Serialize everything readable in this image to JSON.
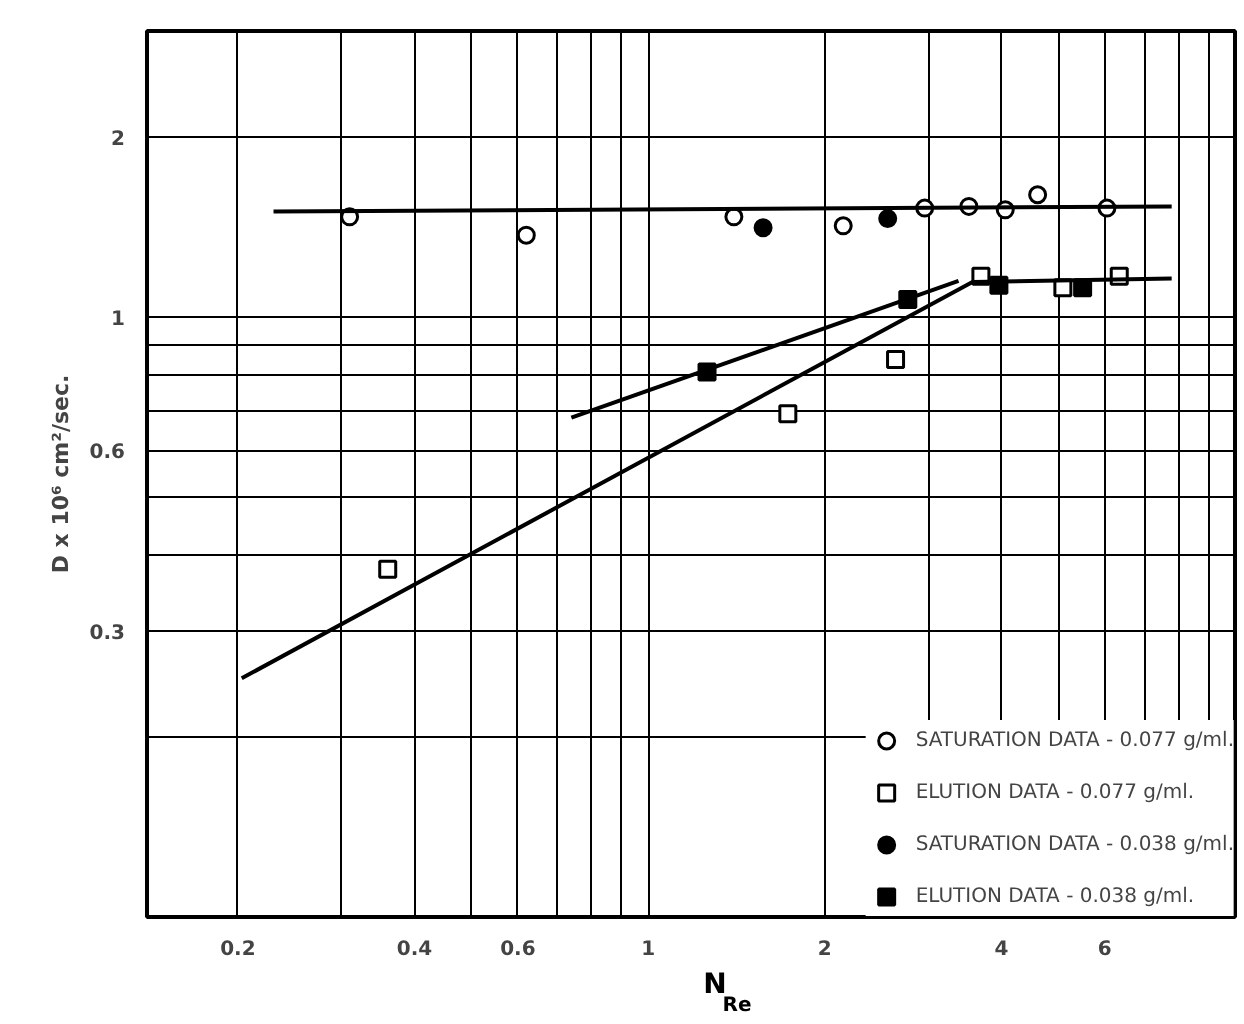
{
  "chart_data": {
    "type": "scatter",
    "xlabel": "N$_{Re}$",
    "ylabel": "D x 10⁶ cm²/sec.",
    "log": "xy",
    "xlim": [
      0.14,
      10
    ],
    "ylim": [
      0.1,
      3
    ],
    "xticks": [
      0.2,
      {
        "value": 0.3,
        "label": null
      },
      0.4,
      {
        "value": 0.5,
        "label": null
      },
      0.6,
      {
        "value": 0.7,
        "label": null
      },
      {
        "value": 0.8,
        "label": null
      },
      {
        "value": 0.9,
        "label": null
      },
      1,
      2,
      {
        "value": 3,
        "label": null
      },
      4,
      {
        "value": 5,
        "label": null
      },
      6,
      {
        "value": 7,
        "label": null
      },
      {
        "value": 8,
        "label": null
      },
      {
        "value": 9,
        "label": null
      }
    ],
    "yticks": [
      {
        "value": 0.2,
        "label": null
      },
      0.3,
      {
        "value": 0.4,
        "label": null
      },
      {
        "value": 0.5,
        "label": null
      },
      0.6,
      {
        "value": 0.7,
        "label": null
      },
      {
        "value": 0.8,
        "label": null
      },
      {
        "value": 0.9,
        "label": null
      },
      1,
      2
    ],
    "grid": true,
    "legend": "bottom right",
    "series": [
      {
        "name": "SATURATION DATA - 0.077 g/ml.",
        "marker": "circle",
        "color": "#ffffff",
        "x": [
          0.31,
          0.62,
          1.4,
          2.15,
          2.96,
          3.52,
          4.06,
          4.61,
          6.05
        ],
        "values": [
          1.47,
          1.37,
          1.47,
          1.42,
          1.52,
          1.53,
          1.51,
          1.6,
          1.52
        ]
      },
      {
        "name": "ELUTION DATA - 0.077 g/ml.",
        "marker": "square",
        "color": "#ffffff",
        "x": [
          0.36,
          1.73,
          2.64,
          3.69,
          5.09,
          6.35
        ],
        "values": [
          0.38,
          0.69,
          0.85,
          1.17,
          1.12,
          1.17
        ]
      },
      {
        "name": "SATURATION DATA - 0.038 g/ml.",
        "marker": "circle",
        "color": "#000000",
        "x": [
          1.57,
          2.56
        ],
        "values": [
          1.41,
          1.46
        ]
      },
      {
        "name": "ELUTION DATA - 0.038 g/ml.",
        "marker": "square",
        "color": "#000000",
        "x": [
          1.26,
          2.77,
          3.96,
          5.5
        ],
        "values": [
          0.81,
          1.07,
          1.13,
          1.12
        ]
      },
      {
        "type": "line",
        "marker": "none",
        "color": "#000000",
        "x": [
          0.23,
          7.8
        ],
        "values": [
          1.5,
          1.53
        ]
      },
      {
        "type": "line",
        "marker": "none",
        "color": "#000000",
        "x": [
          0.203,
          3.57,
          7.8
        ],
        "values": [
          0.25,
          1.145,
          1.16
        ]
      },
      {
        "type": "line",
        "marker": "none",
        "color": "#000000",
        "x": [
          0.74,
          3.38
        ],
        "values": [
          0.68,
          1.15
        ]
      }
    ]
  }
}
